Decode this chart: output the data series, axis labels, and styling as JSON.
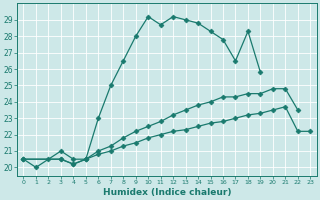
{
  "xlabel": "Humidex (Indice chaleur)",
  "xlim": [
    -0.5,
    23.5
  ],
  "ylim": [
    19.5,
    30.0
  ],
  "yticks": [
    20,
    21,
    22,
    23,
    24,
    25,
    26,
    27,
    28,
    29
  ],
  "xticks": [
    0,
    1,
    2,
    3,
    4,
    5,
    6,
    7,
    8,
    9,
    10,
    11,
    12,
    13,
    14,
    15,
    16,
    17,
    18,
    19,
    20,
    21,
    22,
    23
  ],
  "background_color": "#cde8e8",
  "grid_color": "#b0d4d4",
  "line_color": "#1a7a6e",
  "lines": [
    {
      "x": [
        0,
        1,
        2,
        3,
        4,
        5,
        6,
        7,
        8,
        9,
        10,
        11,
        12,
        13,
        14,
        15,
        16,
        17,
        18,
        19
      ],
      "y": [
        20.5,
        20.0,
        20.5,
        21.0,
        20.5,
        20.5,
        23.0,
        25.0,
        26.5,
        28.0,
        29.2,
        28.7,
        29.2,
        29.0,
        28.8,
        28.3,
        27.8,
        26.5,
        28.3,
        25.8
      ]
    },
    {
      "x": [
        0,
        3,
        4,
        5,
        6,
        7,
        8,
        9,
        10,
        11,
        12,
        13,
        14,
        15,
        16,
        17,
        18,
        19,
        20,
        21,
        22
      ],
      "y": [
        20.5,
        20.5,
        20.2,
        20.5,
        21.0,
        21.3,
        21.8,
        22.2,
        22.5,
        22.8,
        23.2,
        23.5,
        23.8,
        24.0,
        24.3,
        24.3,
        24.5,
        24.5,
        24.8,
        24.8,
        23.5
      ]
    },
    {
      "x": [
        0,
        3,
        4,
        5,
        6,
        7,
        8,
        9,
        10,
        11,
        12,
        13,
        14,
        15,
        16,
        17,
        18,
        19,
        20,
        21,
        22,
        23
      ],
      "y": [
        20.5,
        20.5,
        20.2,
        20.5,
        20.8,
        21.0,
        21.3,
        21.5,
        21.8,
        22.0,
        22.2,
        22.3,
        22.5,
        22.7,
        22.8,
        23.0,
        23.2,
        23.3,
        23.5,
        23.7,
        22.2,
        22.2
      ]
    }
  ]
}
